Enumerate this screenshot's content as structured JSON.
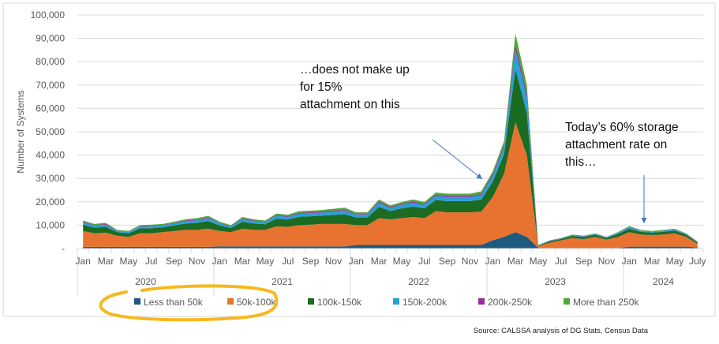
{
  "chart_data": {
    "type": "area",
    "stacked": true,
    "ylabel": "Number of Systems",
    "ylim": [
      0,
      100000
    ],
    "yticks": [
      0,
      10000,
      20000,
      30000,
      40000,
      50000,
      60000,
      70000,
      80000,
      90000,
      100000
    ],
    "ytick_labels": [
      "-",
      "10,000",
      "20,000",
      "30,000",
      "40,000",
      "50,000",
      "60,000",
      "70,000",
      "80,000",
      "90,000",
      "100,000"
    ],
    "grid": true,
    "month_labels": [
      "Jan",
      "Mar",
      "May",
      "Jul",
      "Sep",
      "Nov",
      "Jan",
      "Mar",
      "May",
      "Jul",
      "Sep",
      "Nov",
      "Jan",
      "Mar",
      "May",
      "Jul",
      "Sep",
      "Nov",
      "Jan",
      "Mar",
      "May",
      "Jul",
      "Sep",
      "Nov",
      "Jan",
      "Mar",
      "May",
      "July"
    ],
    "years": [
      "2020",
      "2021",
      "2022",
      "2023",
      "2024"
    ],
    "x_range": "Jan 2020 - Jul 2024 (monthly)",
    "legend_position": "bottom",
    "series": [
      {
        "name": "Less than 50k",
        "color": "#1d5a7e",
        "values": [
          700,
          700,
          700,
          700,
          700,
          700,
          700,
          700,
          700,
          700,
          700,
          700,
          900,
          900,
          900,
          900,
          900,
          900,
          900,
          900,
          900,
          900,
          900,
          900,
          1500,
          1500,
          1500,
          1500,
          1500,
          1500,
          1500,
          1500,
          1500,
          1500,
          1500,
          1500,
          3500,
          5000,
          7000,
          5000,
          300,
          200,
          200,
          200,
          200,
          200,
          200,
          200,
          800,
          800,
          800,
          800,
          800,
          800,
          500
        ]
      },
      {
        "name": "50k-100k",
        "color": "#e8722f",
        "values": [
          6800,
          5800,
          6100,
          4800,
          4300,
          5800,
          5800,
          6300,
          6800,
          7300,
          7300,
          7800,
          6600,
          6100,
          7600,
          7100,
          7100,
          8600,
          8400,
          9100,
          9300,
          9600,
          9600,
          9600,
          8500,
          8500,
          11500,
          11000,
          11500,
          12000,
          11500,
          14500,
          14000,
          14000,
          14000,
          14300,
          18500,
          27000,
          47000,
          35000,
          700,
          2300,
          3300,
          4300,
          3800,
          4800,
          3600,
          4800,
          6200,
          5200,
          5000,
          5200,
          5700,
          4200,
          1500
        ]
      },
      {
        "name": "100k-150k",
        "color": "#1b6b23",
        "values": [
          2700,
          2400,
          2500,
          1500,
          1500,
          2100,
          2200,
          2100,
          2400,
          2700,
          3000,
          3300,
          2400,
          1800,
          3000,
          2700,
          2400,
          3300,
          3100,
          3600,
          3600,
          3600,
          3900,
          4200,
          3300,
          3300,
          4800,
          3600,
          4200,
          4500,
          4200,
          4800,
          4800,
          4800,
          4800,
          5200,
          6600,
          8400,
          22800,
          18000,
          300,
          600,
          600,
          900,
          900,
          900,
          700,
          1200,
          1500,
          1200,
          1000,
          1200,
          1200,
          900,
          600
        ]
      },
      {
        "name": "150k-200k",
        "color": "#2a9fd8",
        "values": [
          1000,
          900,
          900,
          600,
          600,
          800,
          800,
          800,
          900,
          1000,
          1100,
          1200,
          900,
          700,
          1100,
          1000,
          900,
          1200,
          1100,
          1300,
          1300,
          1300,
          1400,
          1500,
          1200,
          1200,
          1800,
          1300,
          1500,
          1600,
          1500,
          1800,
          1800,
          1800,
          1800,
          1900,
          2400,
          3100,
          8400,
          6600,
          100,
          200,
          200,
          300,
          300,
          300,
          300,
          400,
          600,
          400,
          400,
          400,
          400,
          300,
          200
        ]
      },
      {
        "name": "200k-250k",
        "color": "#9b2a9b",
        "values": [
          300,
          200,
          300,
          100,
          100,
          200,
          200,
          200,
          200,
          300,
          300,
          300,
          200,
          200,
          300,
          300,
          200,
          300,
          300,
          400,
          400,
          400,
          400,
          400,
          300,
          300,
          500,
          400,
          400,
          500,
          400,
          500,
          500,
          500,
          500,
          500,
          700,
          800,
          2300,
          1800,
          0,
          100,
          100,
          100,
          100,
          100,
          100,
          100,
          200,
          100,
          100,
          100,
          100,
          100,
          100
        ]
      },
      {
        "name": "More than 250k",
        "color": "#4ea83a",
        "values": [
          500,
          500,
          500,
          300,
          300,
          400,
          500,
          400,
          500,
          500,
          600,
          700,
          500,
          300,
          600,
          500,
          500,
          700,
          700,
          700,
          700,
          700,
          800,
          900,
          700,
          700,
          900,
          700,
          800,
          900,
          800,
          900,
          900,
          900,
          900,
          1100,
          1300,
          1700,
          4500,
          3600,
          100,
          100,
          100,
          200,
          200,
          200,
          100,
          300,
          300,
          300,
          200,
          300,
          300,
          200,
          100
        ]
      }
    ],
    "annotations": [
      "…does not make up\nfor 15%\nattachment on this",
      "Today’s 60% storage\nattachment rate on\nthis…"
    ],
    "source": "Source: CALSSA analysis of DG Stats, Census Data"
  },
  "highlight_color": "#f6b81c"
}
